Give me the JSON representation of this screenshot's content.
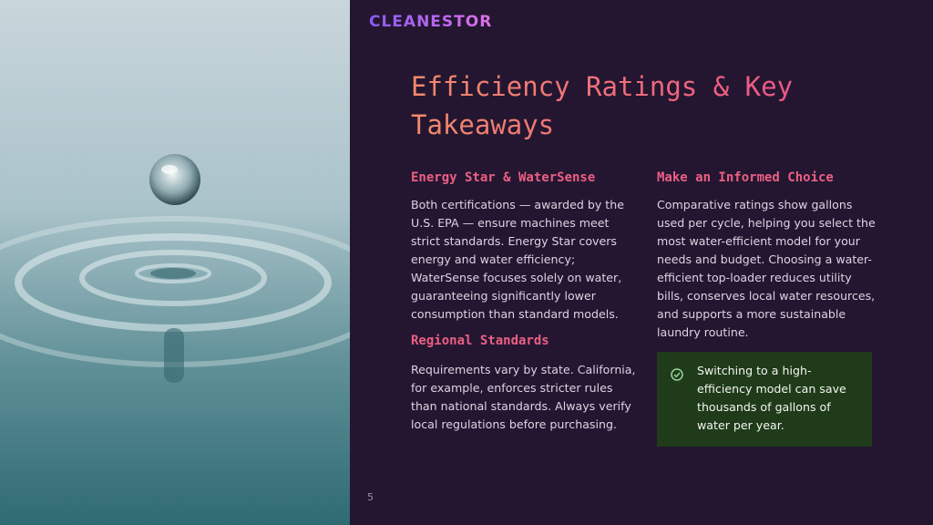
{
  "logo": "CLEANESTOR",
  "title": "Efficiency Ratings & Key Takeaways",
  "sections": [
    {
      "heading": "Energy Star & WaterSense",
      "body": "Both certifications — awarded by the U.S. EPA — ensure machines meet strict standards. Energy Star covers energy and water efficiency; WaterSense focuses solely on water, guaranteeing significantly lower consumption than standard models."
    },
    {
      "heading": "Regional Standards",
      "body": "Requirements vary by state. California, for example, enforces stricter rules than national standards. Always verify local regulations before purchasing."
    },
    {
      "heading": "Make an Informed Choice",
      "body": "Comparative ratings show gallons used per cycle, helping you select the most water-efficient model for your needs and budget. Choosing a water-efficient top-loader reduces utility bills, conserves local water resources, and supports a more sustainable laundry routine."
    }
  ],
  "callout": "Switching to a high-efficiency model can save thousands of gallons of water per year.",
  "page_number": "5"
}
